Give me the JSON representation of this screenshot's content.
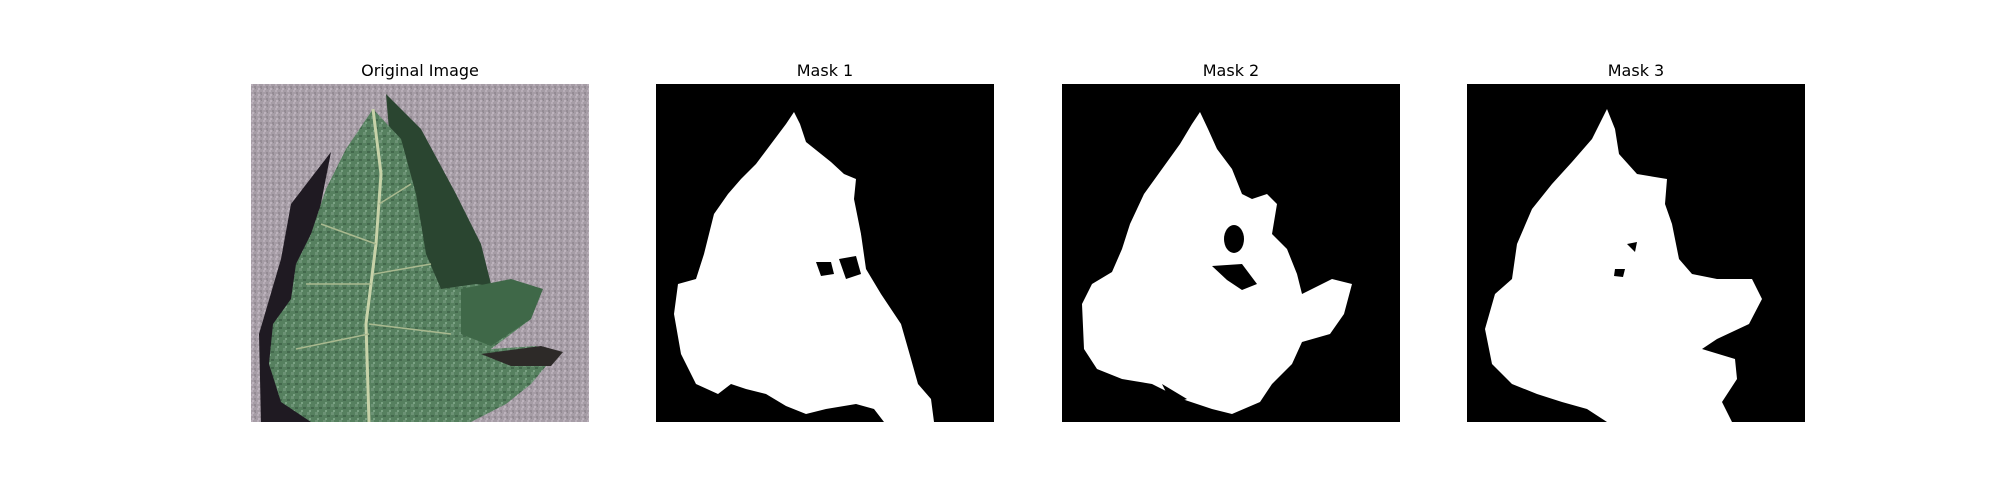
{
  "figure": {
    "panels": [
      {
        "title": "Original Image",
        "kind": "photo"
      },
      {
        "title": "Mask 1",
        "kind": "mask"
      },
      {
        "title": "Mask 2",
        "kind": "mask"
      },
      {
        "title": "Mask 3",
        "kind": "mask"
      }
    ]
  },
  "colors": {
    "background": "#ffffff",
    "mask_foreground": "#ffffff",
    "mask_background": "#000000",
    "photo_background": "#a79ea6",
    "leaf_main": "#4f7a5a",
    "leaf_dark": "#243b2c",
    "shadow": "#1f1a20"
  }
}
